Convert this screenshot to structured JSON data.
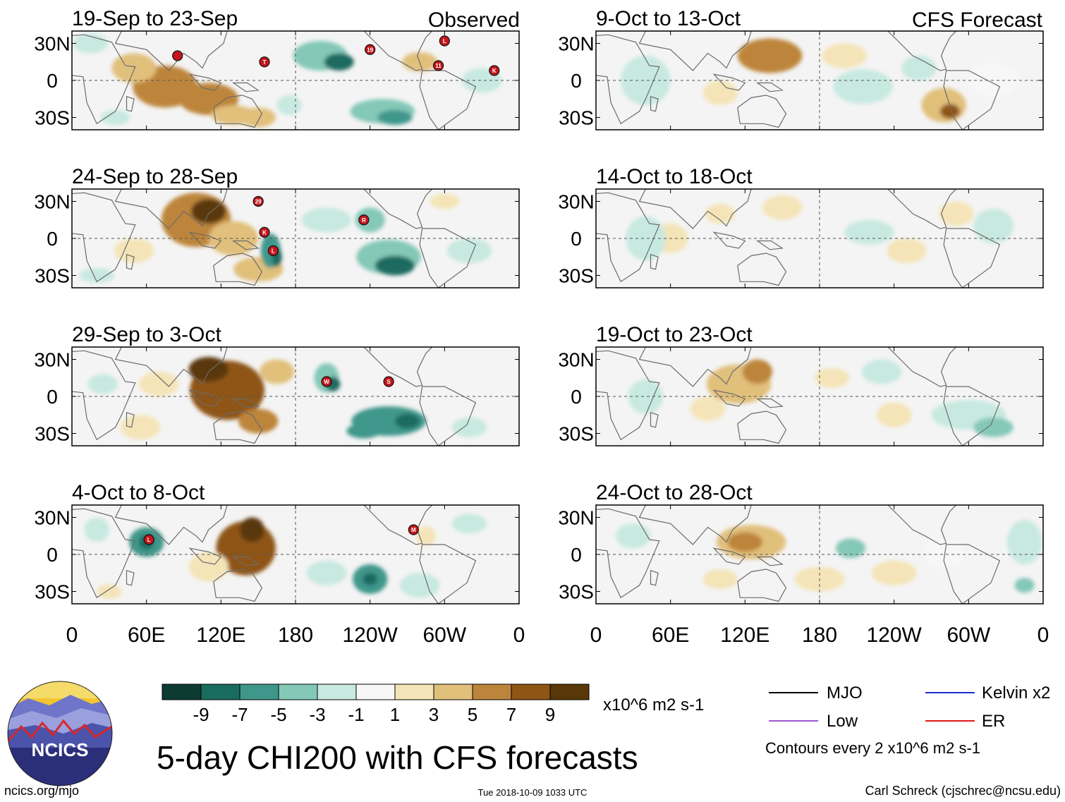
{
  "chart_data": {
    "type": "heatmap",
    "title": "5-day CHI200 with CFS forecasts",
    "variable": "CHI200 anomaly",
    "units": "x10^6 m2 s-1",
    "colorbar": {
      "ticks": [
        "-9",
        "-7",
        "-5",
        "-3",
        "-1",
        "1",
        "3",
        "5",
        "7",
        "9"
      ],
      "colors": [
        "#0d3b34",
        "#1a6b60",
        "#3f978b",
        "#84c8b8",
        "#c7e9e0",
        "#f7f7f7",
        "#f4e4b7",
        "#e1c07c",
        "#bd853b",
        "#8e5514",
        "#5a3708"
      ]
    },
    "x_ticks": [
      "0",
      "60E",
      "120E",
      "180",
      "120W",
      "60W",
      "0"
    ],
    "y_ticks": [
      "30N",
      "0",
      "30S"
    ],
    "lat_range": [
      -40,
      40
    ],
    "lon_range": [
      0,
      360
    ],
    "column_labels": {
      "observed": "Observed",
      "forecast": "CFS Forecast"
    },
    "panels": [
      {
        "period": "19-Sep to 23-Sep",
        "source": "Observed",
        "blobs": [
          [
            75,
            -5,
            26,
            17,
            6
          ],
          [
            110,
            -15,
            24,
            13,
            5
          ],
          [
            130,
            -28,
            18,
            8,
            4
          ],
          [
            50,
            10,
            18,
            12,
            3
          ],
          [
            15,
            30,
            14,
            8,
            -2
          ],
          [
            150,
            -30,
            14,
            8,
            3
          ],
          [
            200,
            20,
            22,
            12,
            -5
          ],
          [
            215,
            15,
            12,
            7,
            -8
          ],
          [
            250,
            -25,
            26,
            10,
            -5
          ],
          [
            260,
            -30,
            14,
            6,
            -7
          ],
          [
            280,
            15,
            14,
            8,
            3
          ],
          [
            330,
            0,
            16,
            10,
            -2
          ],
          [
            35,
            -30,
            12,
            6,
            -3
          ],
          [
            175,
            -20,
            10,
            8,
            -2
          ]
        ],
        "storms": [
          [
            85,
            20,
            ""
          ],
          [
            155,
            15,
            "T"
          ],
          [
            240,
            25,
            "19"
          ],
          [
            300,
            32,
            "L"
          ],
          [
            295,
            12,
            "11"
          ],
          [
            340,
            8,
            "K"
          ]
        ]
      },
      {
        "period": "24-Sep to 28-Sep",
        "source": "Observed",
        "blobs": [
          [
            100,
            15,
            28,
            22,
            6
          ],
          [
            110,
            22,
            14,
            10,
            9
          ],
          [
            130,
            0,
            20,
            14,
            4
          ],
          [
            150,
            -25,
            20,
            10,
            3
          ],
          [
            50,
            -10,
            16,
            10,
            2
          ],
          [
            160,
            -10,
            8,
            14,
            -7
          ],
          [
            165,
            -15,
            4,
            8,
            -9
          ],
          [
            255,
            -15,
            26,
            14,
            -5
          ],
          [
            260,
            -22,
            16,
            8,
            -9
          ],
          [
            240,
            15,
            12,
            10,
            -4
          ],
          [
            205,
            15,
            20,
            10,
            -2
          ],
          [
            320,
            -10,
            18,
            10,
            -2
          ],
          [
            20,
            -30,
            14,
            6,
            -2
          ],
          [
            300,
            30,
            12,
            6,
            2
          ]
        ],
        "storms": [
          [
            150,
            30,
            "29"
          ],
          [
            155,
            5,
            "K"
          ],
          [
            162,
            -10,
            "L"
          ],
          [
            235,
            15,
            "R"
          ]
        ]
      },
      {
        "period": "29-Sep to 3-Oct",
        "source": "Observed",
        "blobs": [
          [
            125,
            5,
            30,
            24,
            7
          ],
          [
            110,
            22,
            16,
            10,
            9
          ],
          [
            150,
            -20,
            16,
            10,
            5
          ],
          [
            165,
            20,
            14,
            10,
            4
          ],
          [
            70,
            10,
            16,
            10,
            2
          ],
          [
            205,
            15,
            10,
            12,
            -5
          ],
          [
            210,
            10,
            6,
            6,
            -8
          ],
          [
            255,
            -20,
            30,
            12,
            -6
          ],
          [
            270,
            -20,
            10,
            6,
            -9
          ],
          [
            235,
            -28,
            14,
            6,
            -6
          ],
          [
            320,
            -25,
            14,
            8,
            -3
          ],
          [
            25,
            10,
            12,
            8,
            -3
          ],
          [
            55,
            -25,
            16,
            10,
            1
          ]
        ],
        "storms": [
          [
            205,
            12,
            "W"
          ],
          [
            255,
            12,
            "S"
          ]
        ]
      },
      {
        "period": "4-Oct to 8-Oct",
        "source": "Observed",
        "blobs": [
          [
            140,
            5,
            24,
            22,
            7
          ],
          [
            145,
            20,
            10,
            10,
            9
          ],
          [
            110,
            -10,
            16,
            12,
            2
          ],
          [
            60,
            10,
            14,
            12,
            -7
          ],
          [
            60,
            10,
            6,
            6,
            -9
          ],
          [
            240,
            -20,
            14,
            12,
            -6
          ],
          [
            240,
            -20,
            6,
            5,
            -9
          ],
          [
            205,
            -15,
            16,
            10,
            -2
          ],
          [
            280,
            -25,
            16,
            10,
            -3
          ],
          [
            20,
            20,
            10,
            10,
            -3
          ],
          [
            30,
            -30,
            10,
            6,
            2
          ],
          [
            285,
            15,
            8,
            8,
            2
          ],
          [
            320,
            25,
            14,
            8,
            -2
          ]
        ],
        "storms": [
          [
            62,
            12,
            "L"
          ],
          [
            275,
            20,
            "M"
          ]
        ]
      },
      {
        "period": "9-Oct to 13-Oct",
        "source": "CFS Forecast",
        "blobs": [
          [
            140,
            20,
            26,
            14,
            5
          ],
          [
            150,
            20,
            12,
            8,
            6
          ],
          [
            280,
            -20,
            18,
            14,
            4
          ],
          [
            285,
            -25,
            8,
            6,
            7
          ],
          [
            100,
            -10,
            14,
            10,
            2
          ],
          [
            40,
            0,
            20,
            20,
            -3
          ],
          [
            215,
            -5,
            24,
            14,
            -2
          ],
          [
            260,
            10,
            14,
            10,
            -2
          ],
          [
            320,
            0,
            20,
            14,
            -1
          ],
          [
            200,
            20,
            18,
            10,
            1
          ]
        ],
        "storms": []
      },
      {
        "period": "14-Oct to 18-Oct",
        "source": "CFS Forecast",
        "blobs": [
          [
            60,
            0,
            14,
            12,
            2
          ],
          [
            150,
            25,
            16,
            10,
            2
          ],
          [
            250,
            -10,
            16,
            10,
            1
          ],
          [
            320,
            10,
            16,
            14,
            -2
          ],
          [
            40,
            0,
            16,
            18,
            -2
          ],
          [
            220,
            5,
            20,
            10,
            -2
          ],
          [
            100,
            20,
            12,
            8,
            2
          ],
          [
            290,
            20,
            14,
            10,
            1
          ]
        ],
        "storms": []
      },
      {
        "period": "19-Oct to 23-Oct",
        "source": "CFS Forecast",
        "blobs": [
          [
            115,
            10,
            26,
            16,
            4
          ],
          [
            130,
            20,
            12,
            10,
            6
          ],
          [
            90,
            -10,
            14,
            10,
            2
          ],
          [
            240,
            -15,
            14,
            10,
            2
          ],
          [
            300,
            -15,
            30,
            12,
            -3
          ],
          [
            320,
            -25,
            16,
            8,
            -4
          ],
          [
            230,
            20,
            16,
            10,
            -2
          ],
          [
            40,
            0,
            14,
            14,
            -2
          ],
          [
            190,
            15,
            14,
            8,
            1
          ]
        ],
        "storms": []
      },
      {
        "period": "24-Oct to 28-Oct",
        "source": "CFS Forecast",
        "blobs": [
          [
            125,
            10,
            28,
            14,
            4
          ],
          [
            120,
            10,
            14,
            8,
            6
          ],
          [
            240,
            -15,
            18,
            10,
            2
          ],
          [
            205,
            5,
            12,
            8,
            -5
          ],
          [
            345,
            10,
            14,
            18,
            -3
          ],
          [
            345,
            -25,
            8,
            6,
            -5
          ],
          [
            30,
            15,
            14,
            10,
            -2
          ],
          [
            280,
            0,
            16,
            12,
            -1
          ],
          [
            180,
            -20,
            20,
            10,
            1
          ],
          [
            100,
            -20,
            14,
            8,
            1
          ]
        ],
        "storms": []
      }
    ]
  },
  "legend": {
    "items": [
      {
        "label": "MJO",
        "color": "#000000"
      },
      {
        "label": "Kelvin x2",
        "color": "#1f2ecc"
      },
      {
        "label": "Low",
        "color": "#9b59d0"
      },
      {
        "label": "ER",
        "color": "#e01919"
      }
    ],
    "contours_note": "Contours every 2 x10^6 m2 s-1"
  },
  "footer": {
    "left": "ncics.org/mjo",
    "center": "Tue 2018-10-09 1033 UTC",
    "right": "Carl Schreck (cjschrec@ncsu.edu)"
  },
  "logo": {
    "text": "NCICS"
  }
}
